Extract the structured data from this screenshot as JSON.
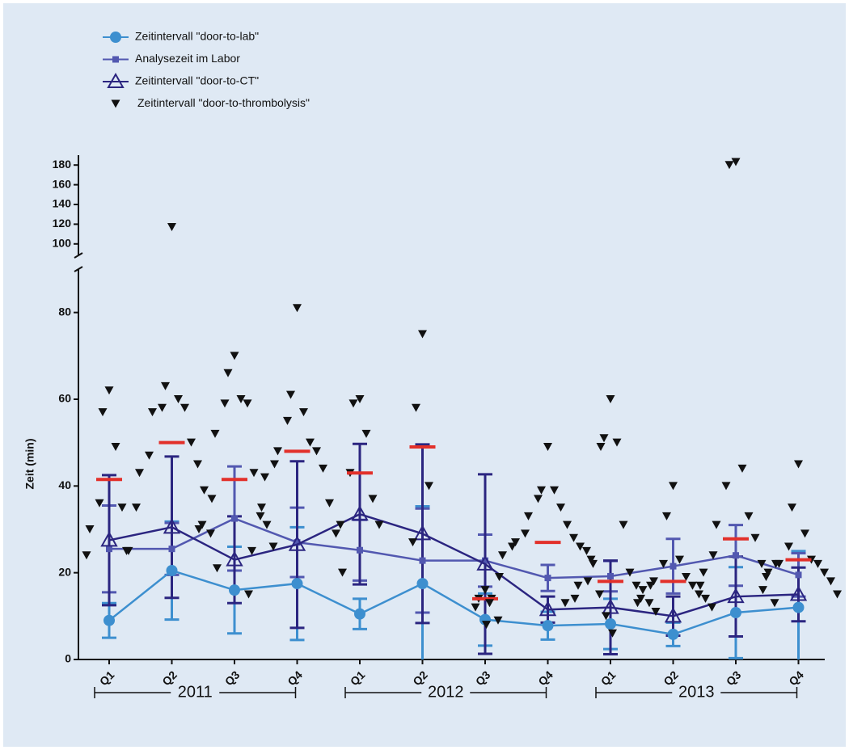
{
  "chart_data": {
    "type": "line",
    "ylabel": "Zeit (min)",
    "categories": [
      "Q1",
      "Q2",
      "Q3",
      "Q4",
      "Q1",
      "Q2",
      "Q3",
      "Q4",
      "Q1",
      "Q2",
      "Q3",
      "Q4"
    ],
    "groups": [
      "2011",
      "2012",
      "2013"
    ],
    "ylim": [
      0,
      90
    ],
    "yticks": [
      0,
      20,
      40,
      60,
      80
    ],
    "ylim_break": [
      90,
      190
    ],
    "yticks_break": [
      100,
      120,
      140,
      160,
      180
    ],
    "series": [
      {
        "name": "Zeitintervall \"door-to-lab\"",
        "color": "#3d8fcf",
        "marker": "circle",
        "values": [
          9,
          20.5,
          16,
          17.5,
          10.5,
          17.5,
          9.2,
          7.8,
          8.2,
          5.8,
          10.8,
          12
        ],
        "errors": [
          4,
          11.3,
          10,
          13,
          3.5,
          17.8,
          6,
          3.2,
          5.8,
          2.7,
          10.5,
          13
        ]
      },
      {
        "name": "Analysezeit im Labor",
        "color": "#5258b0",
        "marker": "square",
        "values": [
          25.5,
          25.5,
          32.5,
          27,
          25.2,
          22.8,
          22.8,
          18.8,
          19.2,
          21.5,
          24,
          19.5
        ],
        "errors": [
          10,
          6,
          12,
          8,
          7,
          12,
          6,
          3,
          3.5,
          6.3,
          7,
          5
        ]
      },
      {
        "name": "Zeitintervall \"door-to-CT\"",
        "color": "#2b2580",
        "marker": "triangle-open",
        "values": [
          27.5,
          30.5,
          23,
          26.5,
          33.5,
          29,
          22,
          11.5,
          12,
          10,
          14.5,
          15
        ],
        "errors": [
          15,
          16.3,
          10,
          19.2,
          16.2,
          20.6,
          20.7,
          3,
          10.8,
          4.5,
          9.2,
          6.2
        ]
      },
      {
        "name": "Zeitintervall \"door-to-thrombolysis\"",
        "color": "#111111",
        "marker": "triangle-down",
        "mean_color": "#e2302a",
        "values": [
          41.5,
          50,
          41.5,
          48,
          43,
          49,
          14,
          27,
          18,
          18,
          27.8,
          23
        ],
        "points": [
          [
            62,
            57,
            49,
            36,
            35,
            30,
            25,
            24
          ],
          [
            117,
            63,
            60,
            58,
            58,
            57,
            50,
            47,
            45,
            43,
            39,
            35,
            29,
            25,
            21
          ],
          [
            70,
            66,
            60,
            59,
            59,
            52,
            43,
            37,
            33,
            31,
            31,
            30,
            26
          ],
          [
            81,
            61,
            57,
            55,
            50,
            48,
            48,
            45,
            44,
            42,
            36,
            35,
            29,
            25,
            20,
            15
          ],
          [
            60,
            59,
            52,
            43,
            37,
            31,
            31
          ],
          [
            75,
            58,
            40,
            27
          ],
          [
            16,
            14,
            14,
            12,
            9
          ],
          [
            49,
            39,
            39,
            37,
            35,
            33,
            31,
            29,
            28,
            27,
            26,
            26,
            25,
            24,
            22,
            19,
            15,
            13,
            10,
            8,
            6
          ],
          [
            60,
            51,
            50,
            49,
            31,
            23,
            20,
            18,
            17,
            17,
            16,
            14,
            13,
            13,
            11
          ],
          [
            40,
            33,
            23,
            22,
            19,
            18,
            17,
            17,
            15,
            14,
            14,
            13,
            12
          ],
          [
            183,
            180,
            44,
            40,
            33,
            31,
            28,
            24,
            22,
            20,
            20,
            17,
            13
          ],
          [
            45,
            35,
            29,
            26,
            23,
            22,
            22,
            22,
            20,
            19,
            18,
            16,
            15
          ]
        ]
      }
    ]
  }
}
